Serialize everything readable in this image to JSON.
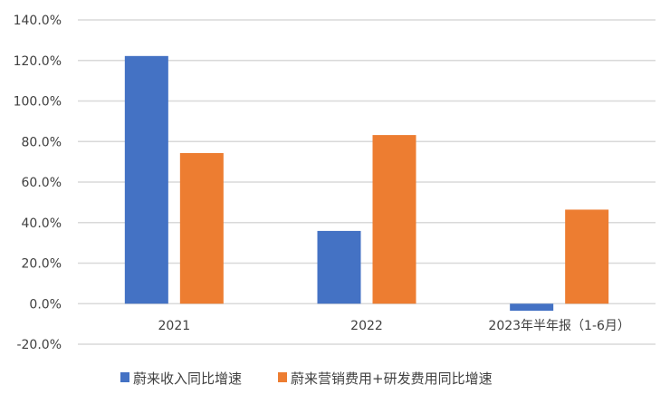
{
  "chart_data": {
    "type": "bar",
    "title": "",
    "xlabel": "",
    "ylabel": "",
    "categories": [
      "2021",
      "2022",
      "2023年半年报（1-6月）"
    ],
    "series": [
      {
        "name": "蔚来收入同比增速",
        "values": [
          122.2,
          35.9,
          -3.5
        ],
        "color": "#4472C4"
      },
      {
        "name": "蔚来营销费用+研发费用同比增速",
        "values": [
          74.3,
          83.2,
          46.4
        ],
        "color": "#ED7D31"
      }
    ],
    "ylim": [
      -20,
      140
    ],
    "yticks": [
      140,
      120,
      100,
      80,
      60,
      40,
      20,
      0,
      -20
    ],
    "ytick_labels": [
      "140.0%",
      "120.0%",
      "100.0%",
      "80.0%",
      "60.0%",
      "40.0%",
      "20.0%",
      "0.0%",
      "-20.0%"
    ],
    "grid": true,
    "gridline_color": "#D9D9D9",
    "legend_position": "bottom"
  }
}
